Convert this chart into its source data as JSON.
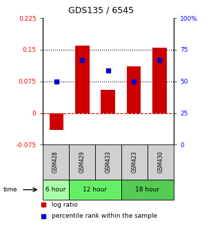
{
  "title": "GDS135 / 6545",
  "samples": [
    "GSM428",
    "GSM429",
    "GSM433",
    "GSM423",
    "GSM430"
  ],
  "log_ratios": [
    -0.04,
    0.16,
    0.055,
    0.11,
    0.155
  ],
  "percentile_ranks": [
    0.075,
    0.125,
    0.1,
    0.075,
    0.125
  ],
  "ylim_left": [
    -0.075,
    0.225
  ],
  "ylim_right": [
    0,
    100
  ],
  "yticks_left": [
    -0.075,
    0,
    0.075,
    0.15,
    0.225
  ],
  "yticks_right": [
    0,
    25,
    50,
    75,
    100
  ],
  "ytick_labels_left": [
    "-0.075",
    "0",
    "0.075",
    "0.15",
    "0.225"
  ],
  "ytick_labels_right": [
    "0",
    "25",
    "50",
    "75",
    "100%"
  ],
  "hlines_dotted": [
    0.075,
    0.15
  ],
  "hline_dashed": 0.0,
  "bar_color": "#cc0000",
  "dot_color": "#0000cc",
  "time_groups": [
    {
      "label": "6 hour",
      "samples": [
        "GSM428"
      ],
      "color": "#aaffaa"
    },
    {
      "label": "12 hour",
      "samples": [
        "GSM429",
        "GSM433"
      ],
      "color": "#66ee66"
    },
    {
      "label": "18 hour",
      "samples": [
        "GSM423",
        "GSM430"
      ],
      "color": "#55cc55"
    }
  ],
  "sample_bg_color": "#d0d0d0",
  "legend_items": [
    {
      "label": "log ratio",
      "color": "#cc0000"
    },
    {
      "label": "percentile rank within the sample",
      "color": "#0000cc"
    }
  ],
  "time_label": "time"
}
